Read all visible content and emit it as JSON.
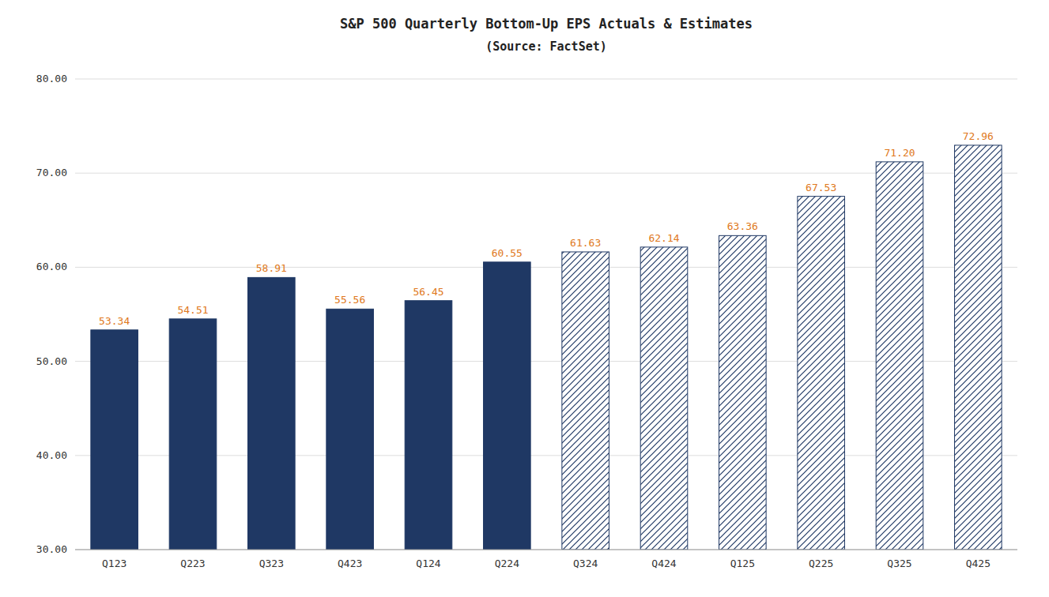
{
  "chart_data": {
    "type": "bar",
    "title": "S&P 500 Quarterly Bottom-Up EPS Actuals & Estimates",
    "subtitle": "(Source: FactSet)",
    "categories": [
      "Q123",
      "Q223",
      "Q323",
      "Q423",
      "Q124",
      "Q224",
      "Q324",
      "Q424",
      "Q125",
      "Q225",
      "Q325",
      "Q425"
    ],
    "series": [
      {
        "color": "#1f3864",
        "line_style": "solid",
        "values": [
          53.34,
          54.51,
          58.91,
          55.56,
          56.45,
          60.55,
          null,
          null,
          null,
          null,
          null,
          null
        ],
        "value_labels": [
          "53.34",
          "54.51",
          "58.91",
          "55.56",
          "56.45",
          "60.55",
          null,
          null,
          null,
          null,
          null,
          null
        ]
      },
      {
        "color": "#1f3864",
        "line_style": "hatched",
        "values": [
          null,
          null,
          null,
          null,
          null,
          null,
          61.63,
          62.14,
          63.36,
          67.53,
          71.2,
          72.96
        ],
        "value_labels": [
          null,
          null,
          null,
          null,
          null,
          null,
          "61.63",
          "62.14",
          "63.36",
          "67.53",
          "71.20",
          "72.96"
        ]
      }
    ],
    "stacked": true,
    "data_labels": true,
    "ylim": [
      30.0,
      80.0
    ],
    "yticks": [
      {
        "value": 30.0,
        "label": "30.00"
      },
      {
        "value": 40.0,
        "label": "40.00"
      },
      {
        "value": 50.0,
        "label": "50.00"
      },
      {
        "value": 60.0,
        "label": "60.00"
      },
      {
        "value": 70.0,
        "label": "70.00"
      },
      {
        "value": 80.0,
        "label": "80.00"
      }
    ],
    "grid": true
  }
}
